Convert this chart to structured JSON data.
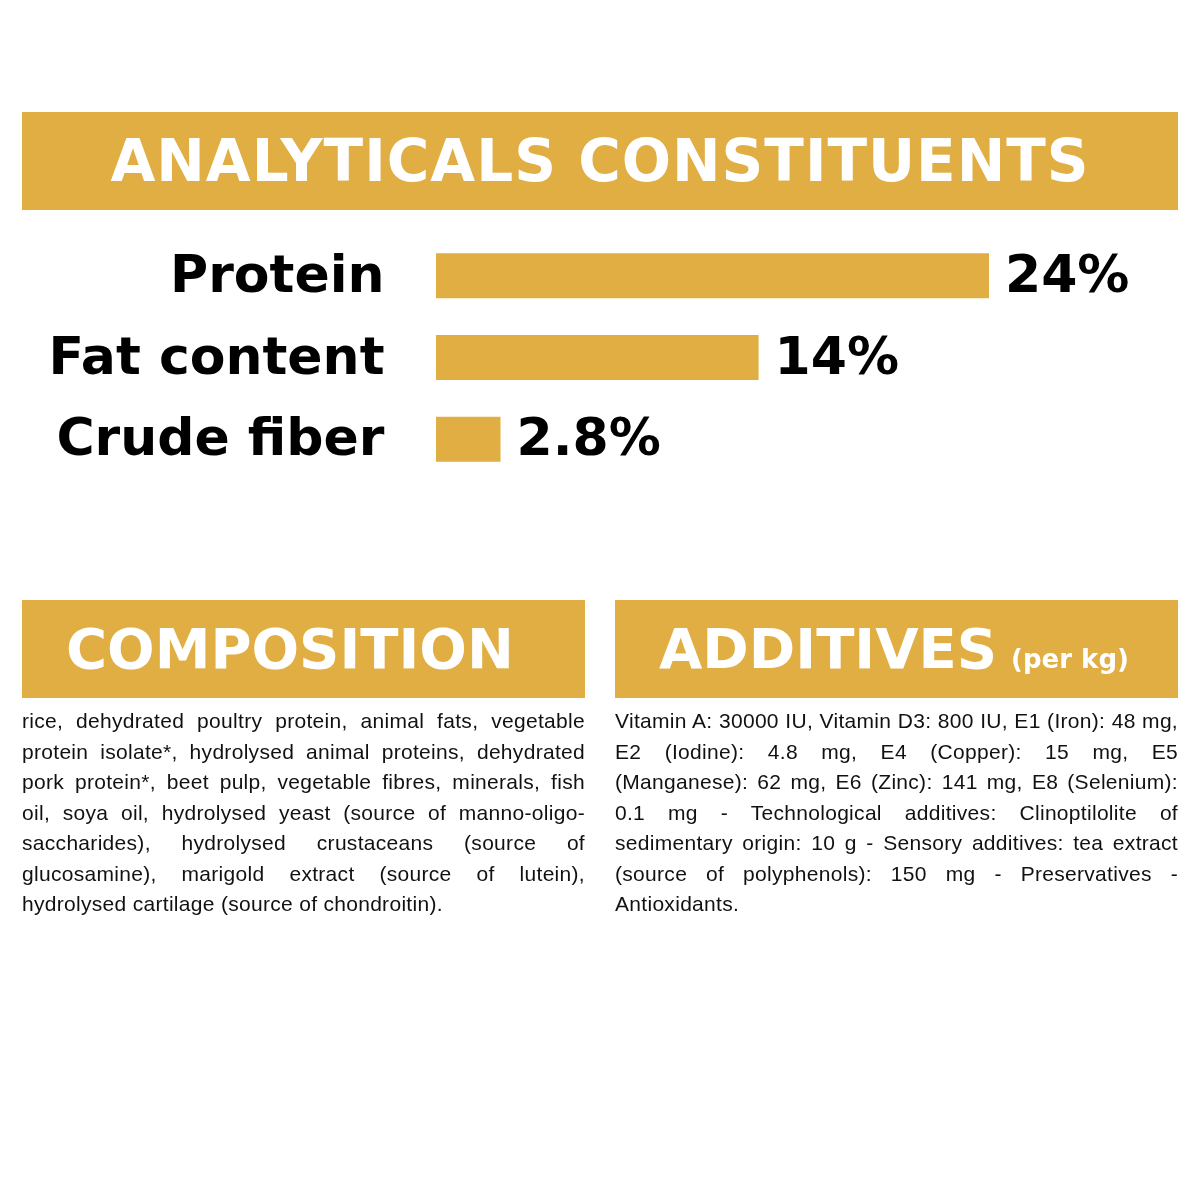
{
  "chart_data": [
    {
      "type": "bar",
      "title": "ANALYTICALS CONSTITUENTS",
      "orientation": "horizontal",
      "categories": [
        "Protein",
        "Fat content",
        "Crude fiber"
      ],
      "values": [
        24,
        14,
        2.8
      ],
      "value_labels": [
        "24%",
        "14%",
        "2.8%"
      ],
      "color": "#e0ae43"
    },
    {
      "type": "other",
      "title": "COMPOSITION",
      "annotations": [
        "rice, dehydrated poultry protein, animal fats, vegetable protein isolate*, hydrolysed animal proteins, dehydrated pork protein*, beet pulp, vegetable fibres, minerals, fish oil, soya oil, hydrolysed yeast (source of manno-oligo-saccharides), hydrolysed crustaceans (source of glucosamine), marigold extract (source of lutein), hydrolysed cartilage (source of chondroitin)."
      ]
    },
    {
      "type": "other",
      "title": "ADDITIVES",
      "subtitle": "(per kg)",
      "annotations": [
        "Vitamin A: 30000 IU, Vitamin D3: 800 IU, E1 (Iron): 48 mg, E2 (Iodine): 4.8 mg, E4 (Copper): 15 mg, E5 (Manganese): 62 mg, E6 (Zinc): 141 mg, E8 (Selenium): 0.1 mg - Technological additives: Clinoptilolite of sedimentary origin: 10 g - Sensory additives: tea extract (source of polyphenols): 150 mg - Preservatives - Antioxidants."
      ]
    }
  ]
}
